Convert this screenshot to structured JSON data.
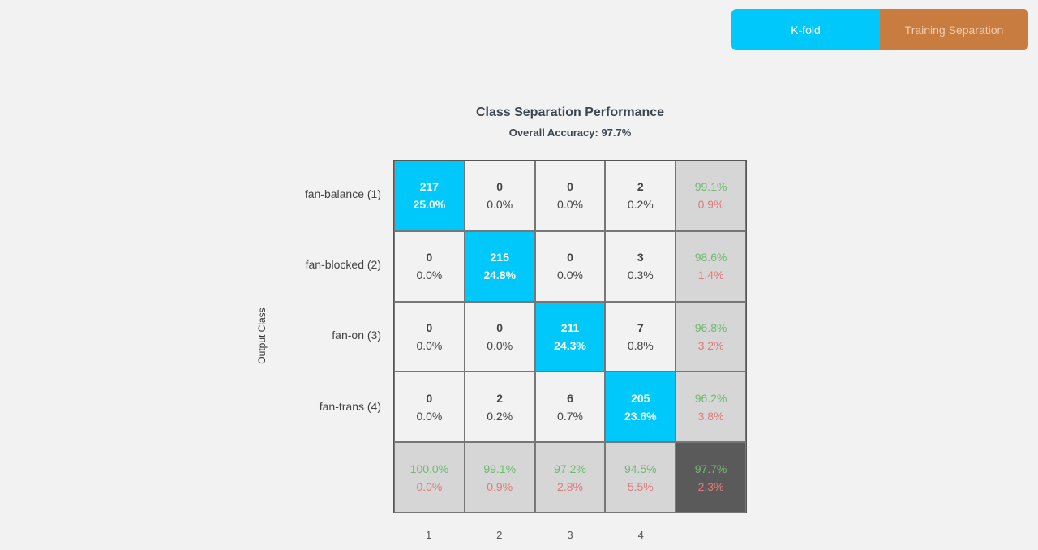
{
  "toggle": {
    "kfold": "K-fold",
    "training": "Training Separation",
    "active": "K-fold",
    "active_color": "#00c8fa",
    "inactive_color": "#c97c40"
  },
  "chart_data": {
    "type": "heatmap",
    "title": "Class Separation Performance",
    "subtitle": "Overall Accuracy: 97.7%",
    "ylabel": "Output Class",
    "row_labels": [
      "fan-balance (1)",
      "fan-blocked (2)",
      "fan-on (3)",
      "fan-trans (4)"
    ],
    "col_labels": [
      "1",
      "2",
      "3",
      "4"
    ],
    "counts": [
      [
        217,
        0,
        0,
        2
      ],
      [
        0,
        215,
        0,
        3
      ],
      [
        0,
        0,
        211,
        7
      ],
      [
        0,
        2,
        6,
        205
      ]
    ],
    "percents": [
      [
        "25.0%",
        "0.0%",
        "0.0%",
        "0.2%"
      ],
      [
        "0.0%",
        "24.8%",
        "0.0%",
        "0.3%"
      ],
      [
        "0.0%",
        "0.0%",
        "24.3%",
        "0.8%"
      ],
      [
        "0.0%",
        "0.2%",
        "0.7%",
        "23.6%"
      ]
    ],
    "row_summary": [
      [
        "99.1%",
        "0.9%"
      ],
      [
        "98.6%",
        "1.4%"
      ],
      [
        "96.8%",
        "3.2%"
      ],
      [
        "96.2%",
        "3.8%"
      ]
    ],
    "col_summary": [
      [
        "100.0%",
        "0.0%"
      ],
      [
        "99.1%",
        "0.9%"
      ],
      [
        "97.2%",
        "2.8%"
      ],
      [
        "94.5%",
        "5.5%"
      ]
    ],
    "overall": [
      "97.7%",
      "2.3%"
    ],
    "colors": {
      "diagonal": "#00c8fa",
      "correct": "#6fba6f",
      "error": "#e07a7a"
    }
  }
}
